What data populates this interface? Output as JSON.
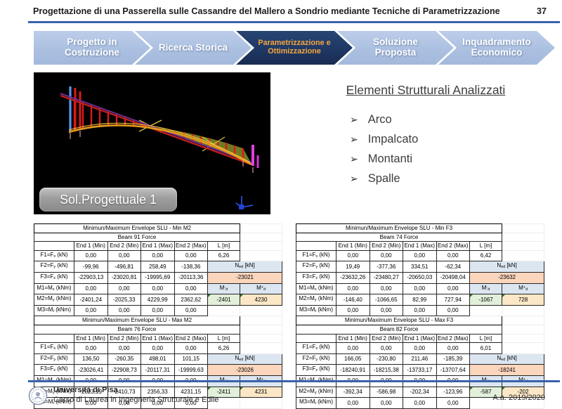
{
  "slide": {
    "title": "Progettazione di una Passerella sulle Cassandre del Mallero a Sondrio mediante Tecniche di Parametrizzazione",
    "page_number": "37"
  },
  "process_nav": {
    "steps": [
      {
        "label": "Progetto in Costruzione",
        "active": false
      },
      {
        "label": "Ricerca Storica",
        "active": false
      },
      {
        "label": "Parametrizzazione e Ottimizzazione",
        "active": true
      },
      {
        "label": "Soluzione Proposta",
        "active": false
      },
      {
        "label": "Inquadramento Economico",
        "active": false
      }
    ]
  },
  "figure": {
    "caption": "Sol.Progettuale 1"
  },
  "elements_panel": {
    "heading": "Elementi Strutturali Analizzati",
    "bullet": "➢",
    "items": [
      "Arco",
      "Impalcato",
      "Montanti",
      "Spalle"
    ]
  },
  "tables": {
    "labels": {
      "ned": "N~ed~ [kN]",
      "m_neg": "M^-^~d~",
      "m_pos": "M^+^~d~"
    },
    "left": {
      "sections": [
        {
          "title": "Minimun/Maximum Envelope SLU - Min M2",
          "subtitle": "Beam 91 Force",
          "col_headers": [
            "End 1 (Min)",
            "End 2 (Min)",
            "End 1 (Max)",
            "End 2 (Max)",
            "L [m]"
          ],
          "L_value": "6,26",
          "ned_value": "-23021",
          "m_neg": "-2401",
          "m_pos": "4230",
          "rows": [
            {
              "label": "F1=F~x~ (kN)",
              "values": [
                "0,00",
                "0,00",
                "0,00",
                "0,00"
              ]
            },
            {
              "label": "F2=F~y~ (kN)",
              "values": [
                "-99,96",
                "-496,81",
                "258,49",
                "-138,36"
              ]
            },
            {
              "label": "F3=F~z~ (kN)",
              "values": [
                "-22903,13",
                "-23020,81",
                "-19995,69",
                "-20113,36"
              ]
            },
            {
              "label": "M1=M~x~ (kNm)",
              "values": [
                "0,00",
                "0,00",
                "0,00",
                "0,00"
              ]
            },
            {
              "label": "M2=M~y~ (kNm)",
              "values": [
                "-2401,24",
                "-2025,33",
                "4229,99",
                "2362,62"
              ]
            },
            {
              "label": "M3=M~t~ (kNm)",
              "values": [
                "0,00",
                "0,00",
                "0,00",
                "0,00"
              ]
            }
          ]
        },
        {
          "title": "Minimun/Maximum Envelope SLU - Max M2",
          "subtitle": "Beam 76 Force",
          "col_headers": [
            "End 1 (Min)",
            "End 2 (Min)",
            "End 1 (Max)",
            "End 2 (Max)",
            "L [m]"
          ],
          "L_value": "6,26",
          "ned_value": "-23026",
          "m_neg": "-2411",
          "m_pos": "4231",
          "rows": [
            {
              "label": "F1=F~x~ (kN)",
              "values": [
                "0,00",
                "0,00",
                "0,00",
                "0,00"
              ]
            },
            {
              "label": "F2=F~y~ (kN)",
              "values": [
                "136,50",
                "-260,35",
                "498,01",
                "101,15"
              ]
            },
            {
              "label": "F3=F~z~ (kN)",
              "values": [
                "-23026,41",
                "-22908,73",
                "-20117,31",
                "-19999,63"
              ]
            },
            {
              "label": "M1=M~x~ (kNm)",
              "values": [
                "0,00",
                "0,00",
                "0,00",
                "0,00"
              ]
            },
            {
              "label": "M2=M~y~ (kNm)",
              "values": [
                "-2023,19",
                "-2410,73",
                "2356,33",
                "4231,15"
              ]
            },
            {
              "label": "M3=M~t~ (kNm)",
              "values": [
                "0,00",
                "0,00",
                "0,00",
                "0,00"
              ]
            }
          ]
        }
      ]
    },
    "right": {
      "sections": [
        {
          "title": "Minimun/Maximum Envelope SLU - Min F3",
          "subtitle": "Beam 74 Force",
          "col_headers": [
            "End 1 (Min)",
            "End 2 (Min)",
            "End 1 (Max)",
            "End 2 (Max)",
            "L [m]"
          ],
          "L_value": "6,42",
          "ned_value": "-23632",
          "m_neg": "-1067",
          "m_pos": "728",
          "rows": [
            {
              "label": "F1=F~x~ (kN)",
              "values": [
                "0,00",
                "0,00",
                "0,00",
                "0,00"
              ]
            },
            {
              "label": "F2=F~y~ (kN)",
              "values": [
                "19,49",
                "-377,36",
                "334,51",
                "-62,34"
              ]
            },
            {
              "label": "F3=F~z~ (kN)",
              "values": [
                "-23632,26",
                "-23480,27",
                "-20650,03",
                "-20498,04"
              ]
            },
            {
              "label": "M1=M~x~ (kNm)",
              "values": [
                "0,00",
                "0,00",
                "0,00",
                "0,00"
              ]
            },
            {
              "label": "M2=M~y~ (kNm)",
              "values": [
                "-146,40",
                "-1066,65",
                "82,99",
                "727,94"
              ]
            },
            {
              "label": "M3=M~t~ (kNm)",
              "values": [
                "0,00",
                "0,00",
                "0,00",
                "0,00"
              ]
            }
          ]
        },
        {
          "title": "Minimun/Maximum Envelope SLU - Max F3",
          "subtitle": "Beam 82 Force",
          "col_headers": [
            "End 1 (Min)",
            "End 2 (Min)",
            "End 1 (Max)",
            "End 2 (Max)",
            "L [m]"
          ],
          "L_value": "6,01",
          "ned_value": "-18241",
          "m_neg": "-587",
          "m_pos": "-202",
          "rows": [
            {
              "label": "F1=F~x~ (kN)",
              "values": [
                "0,00",
                "0,00",
                "0,00",
                "0,00"
              ]
            },
            {
              "label": "F2=F~y~ (kN)",
              "values": [
                "166,05",
                "-230,80",
                "211,46",
                "-185,39"
              ]
            },
            {
              "label": "F3=F~z~ (kN)",
              "values": [
                "-18240,91",
                "-18215,38",
                "-13733,17",
                "-13707,64"
              ]
            },
            {
              "label": "M1=M~x~ (kNm)",
              "values": [
                "0,00",
                "0,00",
                "0,00",
                "0,00"
              ]
            },
            {
              "label": "M2=M~y~ (kNm)",
              "values": [
                "-392,34",
                "-586,98",
                "-202,34",
                "-123,96"
              ]
            },
            {
              "label": "M3=M~t~ (kNm)",
              "values": [
                "0,00",
                "0,00",
                "0,00",
                "0,00"
              ]
            }
          ]
        }
      ]
    }
  },
  "footer": {
    "org": "Università di Pisa",
    "course": "Corso di Laurea in Ingegneria Strutturale e Edile",
    "year": "A.a. 2019/2020"
  },
  "colors": {
    "accent_blue": "#3a62ad",
    "chevron_inactive": "#b3c6e7",
    "chevron_active": "#1f3864",
    "chevron_active_text": "#f6a63e",
    "cell_blue": "#dce6f1",
    "cell_salmon": "#fbd5bc",
    "cell_green": "#e2efda",
    "cell_orange": "#fbe7c6"
  }
}
